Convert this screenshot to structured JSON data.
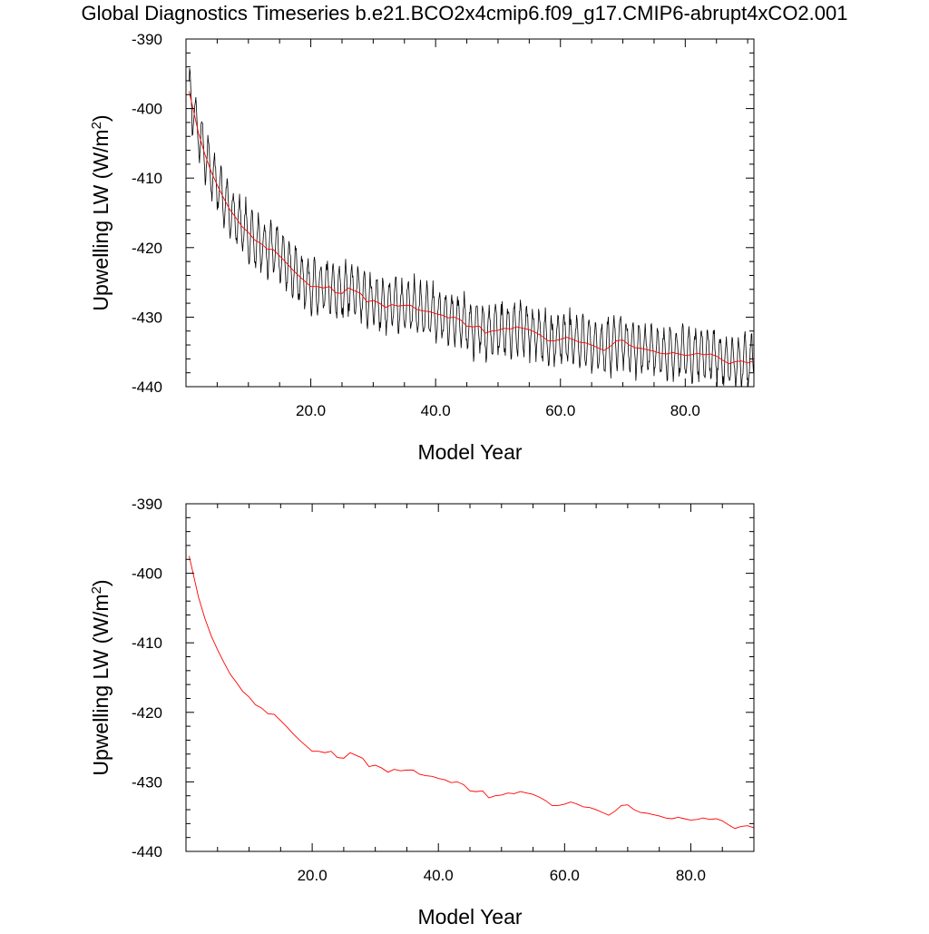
{
  "page": {
    "title": "Global Diagnostics Timeseries b.e21.BCO2x4cmip6.f09_g17.CMIP6-abrupt4xCO2.001"
  },
  "colors": {
    "monthly_line": "#000000",
    "annual_line": "#ff0000",
    "axis": "#000000"
  },
  "chart_data": [
    {
      "type": "line",
      "title": "",
      "xlabel": "Model Year",
      "ylabel": "Upwelling LW (W/m2)",
      "ylabel_parts": {
        "main": "Upwelling LW (W/m",
        "sup": "2",
        "close": ")"
      },
      "xlim": [
        0,
        91
      ],
      "ylim": [
        -440,
        -390
      ],
      "x_ticks": [
        20.0,
        40.0,
        60.0,
        80.0
      ],
      "x_tick_labels": [
        "20.0",
        "40.0",
        "60.0",
        "80.0"
      ],
      "y_ticks": [
        -390,
        -400,
        -410,
        -420,
        -430,
        -440
      ],
      "y_tick_labels": [
        "-390",
        "-400",
        "-410",
        "-420",
        "-430",
        "-440"
      ],
      "grid": false,
      "legend": "none",
      "series": [
        {
          "role": "monthly",
          "color": "#000000",
          "seasonal_amplitude_min": 2.2,
          "seasonal_amplitude_max": 4.6,
          "x_start": 0.5,
          "x_end": 91.0,
          "samples_per_year": 12
        },
        {
          "role": "annual",
          "color": "#ff0000",
          "x": [
            0.5,
            1,
            2,
            3,
            4,
            5,
            6,
            7,
            8,
            9,
            10,
            11,
            12,
            13,
            14,
            15,
            16,
            17,
            18,
            19,
            20,
            21,
            22,
            23,
            24,
            25,
            26,
            27,
            28,
            29,
            30,
            31,
            32,
            33,
            34,
            35,
            36,
            37,
            38,
            39,
            40,
            41,
            42,
            43,
            44,
            45,
            46,
            47,
            48,
            49,
            50,
            51,
            52,
            53,
            54,
            55,
            56,
            57,
            58,
            59,
            60,
            61,
            62,
            63,
            64,
            65,
            66,
            67,
            68,
            69,
            70,
            71,
            72,
            73,
            74,
            75,
            76,
            77,
            78,
            79,
            80,
            81,
            82,
            83,
            84,
            85,
            86,
            87,
            88,
            89,
            90,
            91
          ],
          "values": [
            -397.5,
            -399.5,
            -403.5,
            -406.5,
            -409.0,
            -411.0,
            -412.8,
            -414.5,
            -415.7,
            -417.0,
            -417.8,
            -418.9,
            -419.4,
            -420.2,
            -420.3,
            -421.2,
            -422.1,
            -423.1,
            -424.0,
            -424.8,
            -425.6,
            -425.6,
            -425.8,
            -425.6,
            -426.5,
            -426.6,
            -425.8,
            -426.2,
            -426.6,
            -427.8,
            -427.6,
            -428.0,
            -428.6,
            -428.2,
            -428.4,
            -428.3,
            -428.3,
            -428.9,
            -429.1,
            -429.2,
            -429.5,
            -429.7,
            -430.1,
            -430.0,
            -430.4,
            -431.3,
            -431.4,
            -431.3,
            -432.3,
            -432.0,
            -431.9,
            -431.6,
            -431.7,
            -431.4,
            -431.6,
            -431.8,
            -432.2,
            -432.7,
            -433.4,
            -433.4,
            -433.2,
            -432.9,
            -433.2,
            -433.6,
            -433.7,
            -434.0,
            -434.4,
            -434.8,
            -434.2,
            -433.4,
            -433.3,
            -434.0,
            -434.4,
            -434.5,
            -434.7,
            -434.9,
            -435.2,
            -435.3,
            -435.1,
            -435.3,
            -435.5,
            -435.4,
            -435.2,
            -435.4,
            -435.3,
            -435.6,
            -436.2,
            -436.7,
            -436.4,
            -436.3,
            -436.6,
            -436.3
          ]
        }
      ]
    },
    {
      "type": "line",
      "title": "",
      "xlabel": "Model Year",
      "ylabel": "Upwelling LW (W/m2)",
      "ylabel_parts": {
        "main": "Upwelling LW (W/m",
        "sup": "2",
        "close": ")"
      },
      "xlim": [
        0,
        90
      ],
      "ylim": [
        -440,
        -390
      ],
      "x_ticks": [
        20.0,
        40.0,
        60.0,
        80.0
      ],
      "x_tick_labels": [
        "20.0",
        "40.0",
        "60.0",
        "80.0"
      ],
      "y_ticks": [
        -390,
        -400,
        -410,
        -420,
        -430,
        -440
      ],
      "y_tick_labels": [
        "-390",
        "-400",
        "-410",
        "-420",
        "-430",
        "-440"
      ],
      "grid": false,
      "legend": "none",
      "series": [
        {
          "role": "annual",
          "color": "#ff0000",
          "x": [
            0.5,
            1,
            2,
            3,
            4,
            5,
            6,
            7,
            8,
            9,
            10,
            11,
            12,
            13,
            14,
            15,
            16,
            17,
            18,
            19,
            20,
            21,
            22,
            23,
            24,
            25,
            26,
            27,
            28,
            29,
            30,
            31,
            32,
            33,
            34,
            35,
            36,
            37,
            38,
            39,
            40,
            41,
            42,
            43,
            44,
            45,
            46,
            47,
            48,
            49,
            50,
            51,
            52,
            53,
            54,
            55,
            56,
            57,
            58,
            59,
            60,
            61,
            62,
            63,
            64,
            65,
            66,
            67,
            68,
            69,
            70,
            71,
            72,
            73,
            74,
            75,
            76,
            77,
            78,
            79,
            80,
            81,
            82,
            83,
            84,
            85,
            86,
            87,
            88,
            89,
            90
          ],
          "values": [
            -397.5,
            -399.5,
            -403.5,
            -406.5,
            -409.0,
            -411.0,
            -412.8,
            -414.5,
            -415.7,
            -417.0,
            -417.8,
            -418.9,
            -419.4,
            -420.2,
            -420.3,
            -421.2,
            -422.1,
            -423.1,
            -424.0,
            -424.8,
            -425.6,
            -425.6,
            -425.8,
            -425.6,
            -426.5,
            -426.6,
            -425.8,
            -426.2,
            -426.6,
            -427.8,
            -427.6,
            -428.0,
            -428.6,
            -428.2,
            -428.4,
            -428.3,
            -428.3,
            -428.9,
            -429.1,
            -429.2,
            -429.5,
            -429.7,
            -430.1,
            -430.0,
            -430.4,
            -431.3,
            -431.4,
            -431.3,
            -432.3,
            -432.0,
            -431.9,
            -431.6,
            -431.7,
            -431.4,
            -431.6,
            -431.8,
            -432.2,
            -432.7,
            -433.4,
            -433.4,
            -433.2,
            -432.9,
            -433.2,
            -433.6,
            -433.7,
            -434.0,
            -434.4,
            -434.8,
            -434.2,
            -433.4,
            -433.3,
            -434.0,
            -434.4,
            -434.5,
            -434.7,
            -434.9,
            -435.2,
            -435.3,
            -435.1,
            -435.3,
            -435.5,
            -435.4,
            -435.2,
            -435.4,
            -435.3,
            -435.6,
            -436.2,
            -436.7,
            -436.4,
            -436.3,
            -436.6
          ]
        }
      ]
    }
  ]
}
